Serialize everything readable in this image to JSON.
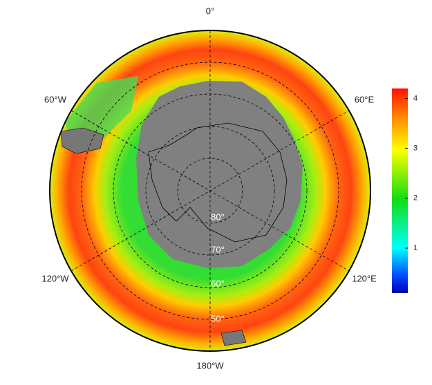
{
  "map": {
    "longitude_labels": [
      "0°",
      "60°E",
      "120°E",
      "180°W",
      "120°W",
      "60°W"
    ],
    "latitude_labels": [
      "80°",
      "70°",
      "60°",
      "50°"
    ],
    "colorbar": {
      "range": [
        0.1,
        4.2
      ],
      "ticks": [
        1,
        2,
        3,
        4
      ]
    }
  }
}
